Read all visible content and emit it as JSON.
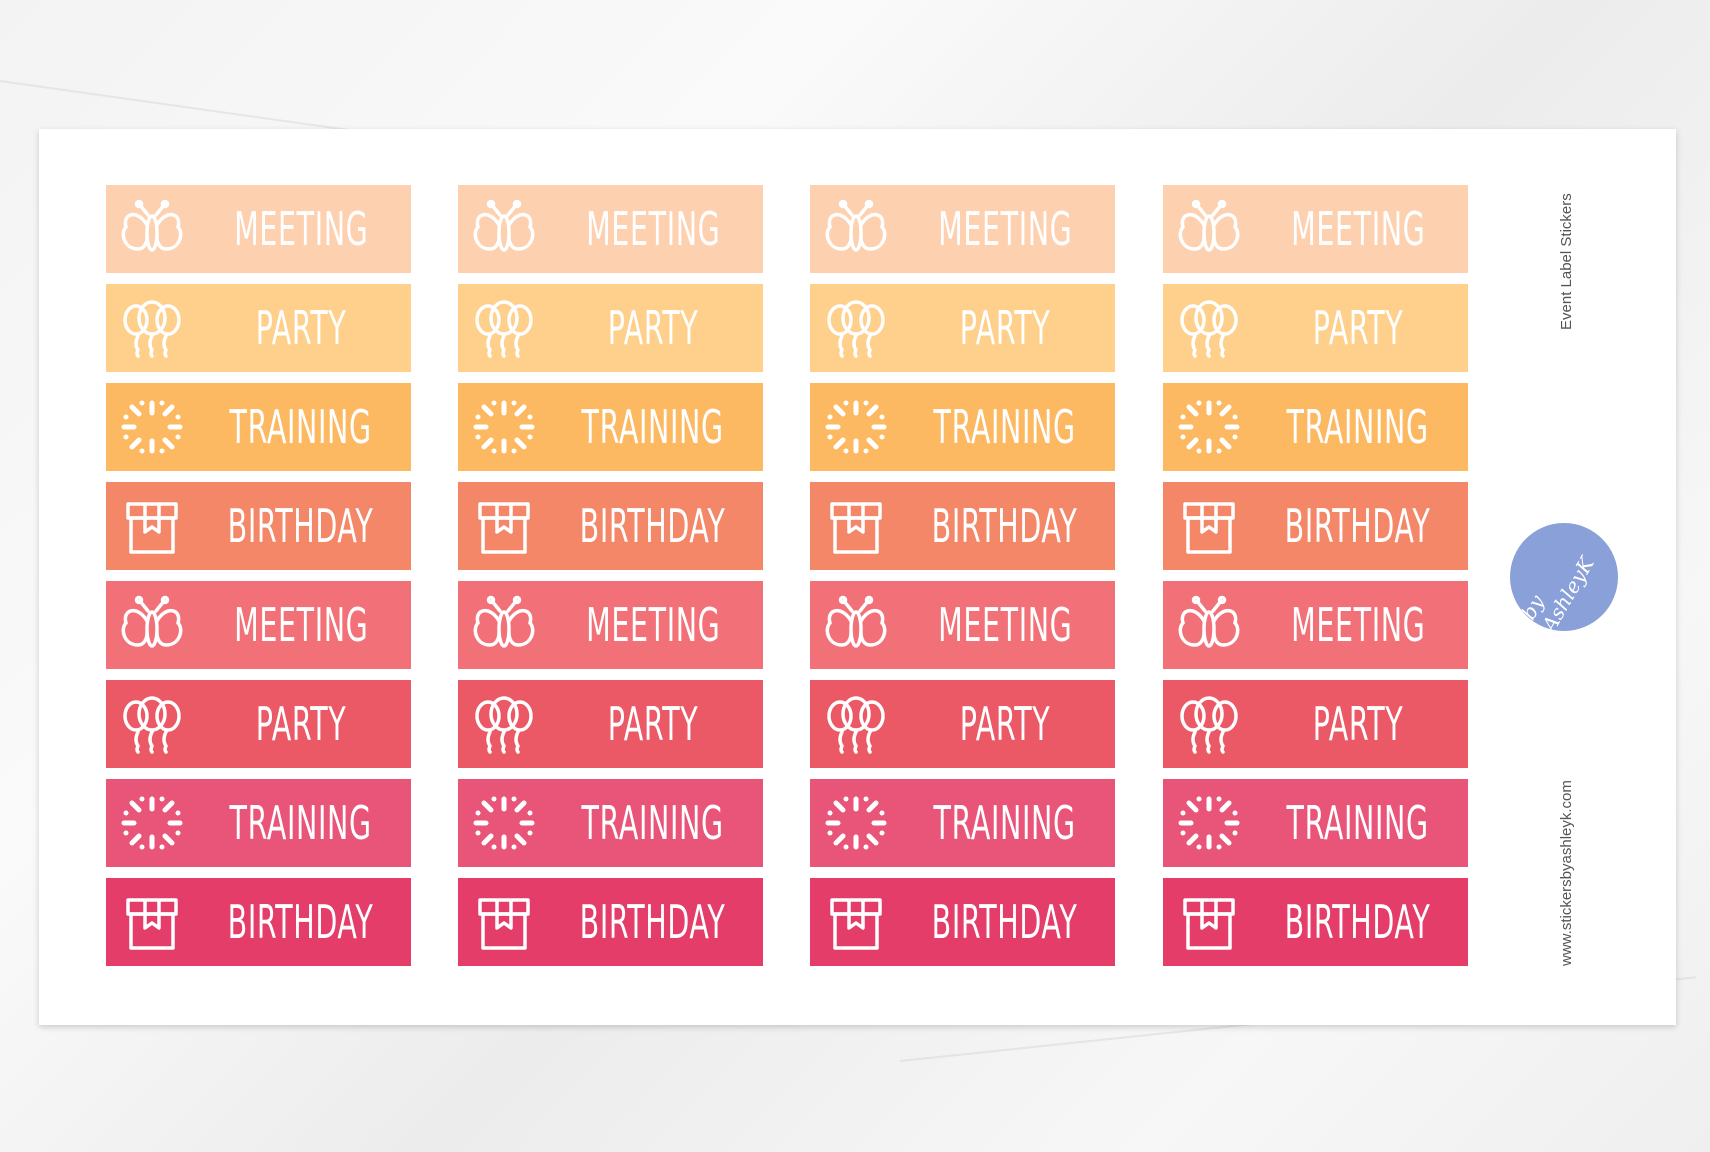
{
  "sheet": {
    "title": "Event Label Stickers",
    "website": "www.stickersbyashleyk.com",
    "logo_text": "by AshleyK"
  },
  "rows": [
    {
      "label": "MEETING",
      "icon": "butterfly-icon",
      "color": "#fdd0b0"
    },
    {
      "label": "PARTY",
      "icon": "balloons-icon",
      "color": "#fed08c"
    },
    {
      "label": "TRAINING",
      "icon": "sunburst-icon",
      "color": "#fdb862"
    },
    {
      "label": "BIRTHDAY",
      "icon": "gift-icon",
      "color": "#f58769"
    },
    {
      "label": "MEETING",
      "icon": "butterfly-icon",
      "color": "#f27077"
    },
    {
      "label": "PARTY",
      "icon": "balloons-icon",
      "color": "#ec5966"
    },
    {
      "label": "TRAINING",
      "icon": "sunburst-icon",
      "color": "#e95479"
    },
    {
      "label": "BIRTHDAY",
      "icon": "gift-icon",
      "color": "#e43d6a"
    }
  ],
  "columns": 4
}
